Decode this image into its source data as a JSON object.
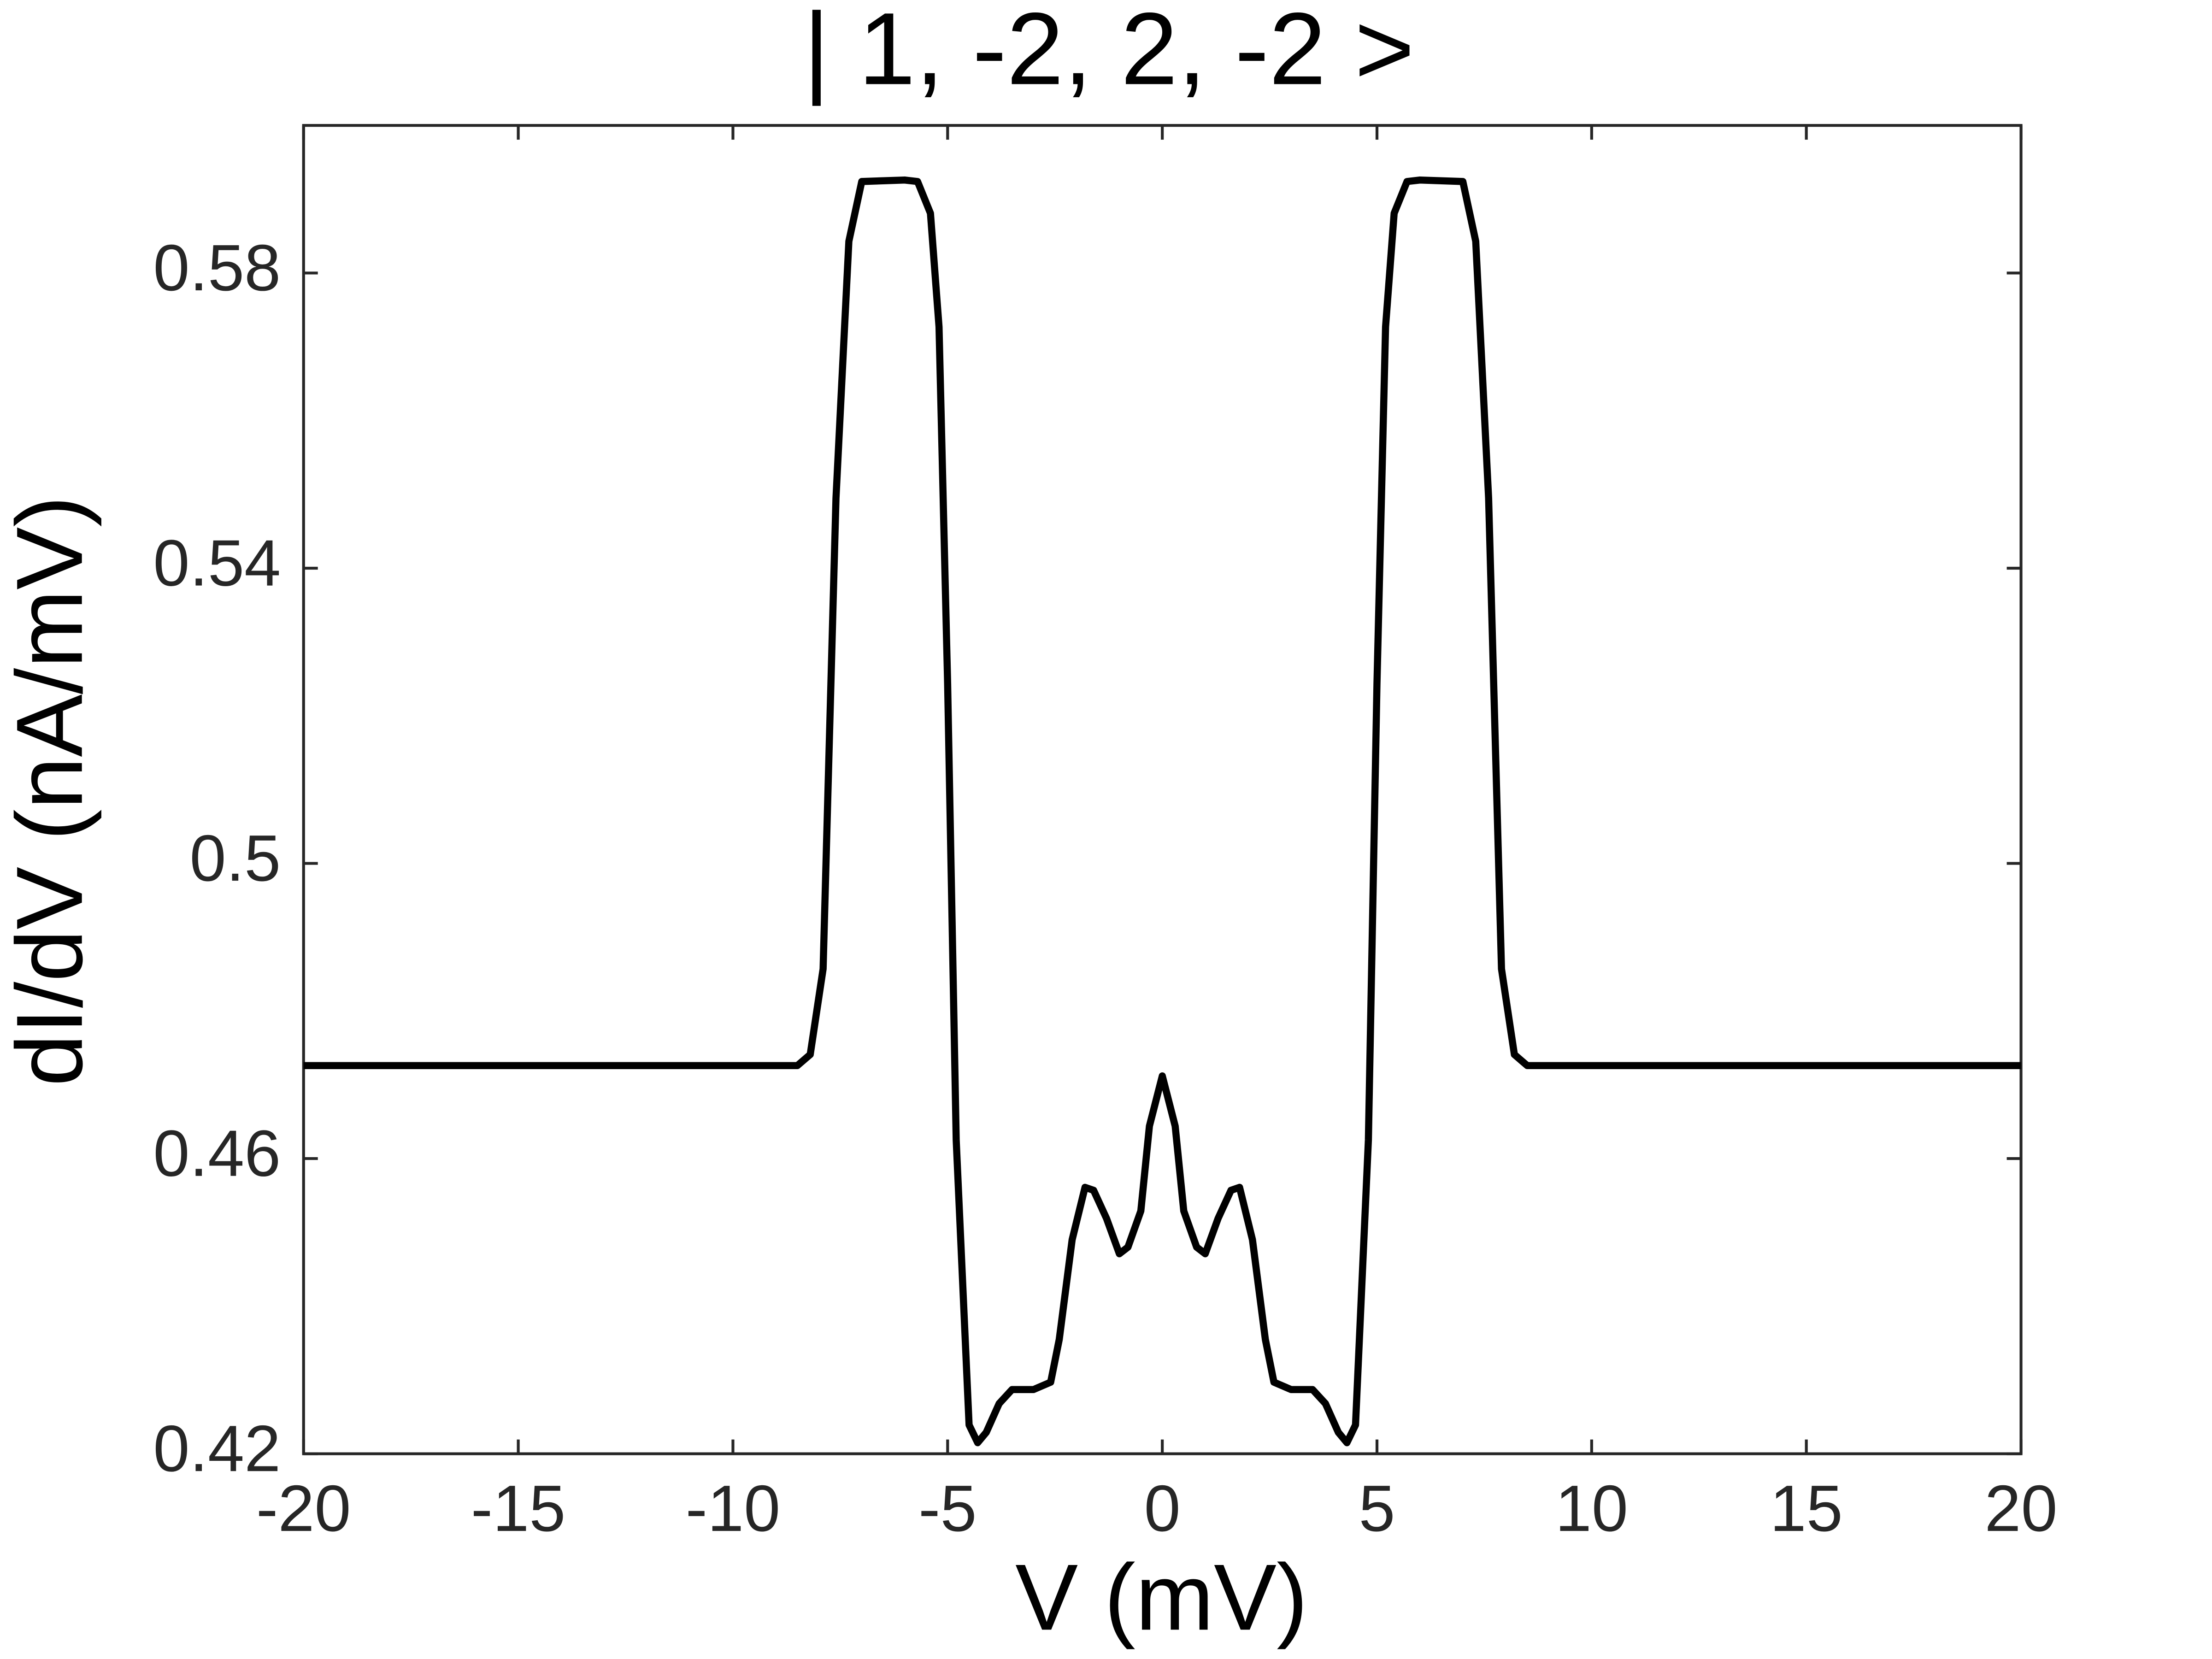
{
  "chart_data": {
    "type": "line",
    "title": "| 1, -2, 2, -2 >",
    "x_label": "V (mV)",
    "y_label": "dI/dV (nA/mV)",
    "x": [
      -20,
      -8.5,
      -8.2,
      -7.9,
      -7.6,
      -7.3,
      -7.0,
      -6.0,
      -5.7,
      -5.4,
      -5.2,
      -5.0,
      -4.8,
      -4.5,
      -4.3,
      -4.1,
      -3.8,
      -3.5,
      -3.0,
      -2.6,
      -2.4,
      -2.1,
      -1.8,
      -1.6,
      -1.3,
      -1.0,
      -0.8,
      -0.5,
      -0.3,
      0,
      0.3,
      0.5,
      0.8,
      1.0,
      1.3,
      1.6,
      1.8,
      2.1,
      2.4,
      2.6,
      3.0,
      3.5,
      3.8,
      4.1,
      4.3,
      4.5,
      4.8,
      5.0,
      5.2,
      5.4,
      5.7,
      6.0,
      7.0,
      7.3,
      7.6,
      7.9,
      8.2,
      8.5,
      20
    ],
    "series": [
      {
        "color": "#000000",
        "values": [
          0.4726,
          0.4726,
          0.4741,
          0.4857,
          0.5495,
          0.5843,
          0.5924,
          0.5926,
          0.5924,
          0.5881,
          0.5727,
          0.5244,
          0.4625,
          0.4239,
          0.4215,
          0.4229,
          0.4268,
          0.4287,
          0.4287,
          0.4297,
          0.4355,
          0.449,
          0.4561,
          0.4557,
          0.4519,
          0.4471,
          0.448,
          0.4529,
          0.4644,
          0.4712,
          0.4644,
          0.4529,
          0.448,
          0.4471,
          0.4519,
          0.4557,
          0.4561,
          0.449,
          0.4355,
          0.4297,
          0.4287,
          0.4287,
          0.4268,
          0.4229,
          0.4215,
          0.4239,
          0.4625,
          0.5244,
          0.5727,
          0.5881,
          0.5924,
          0.5926,
          0.5924,
          0.5843,
          0.5495,
          0.4857,
          0.4741,
          0.4726,
          0.4726
        ]
      }
    ],
    "xlim": [
      -20,
      20
    ],
    "xticks": [
      -20,
      -15,
      -10,
      -5,
      0,
      5,
      10,
      15,
      20
    ],
    "ylim": [
      0.42,
      0.6
    ],
    "yticks": [
      0.42,
      0.46,
      0.5,
      0.54,
      0.58
    ],
    "grid": false
  }
}
